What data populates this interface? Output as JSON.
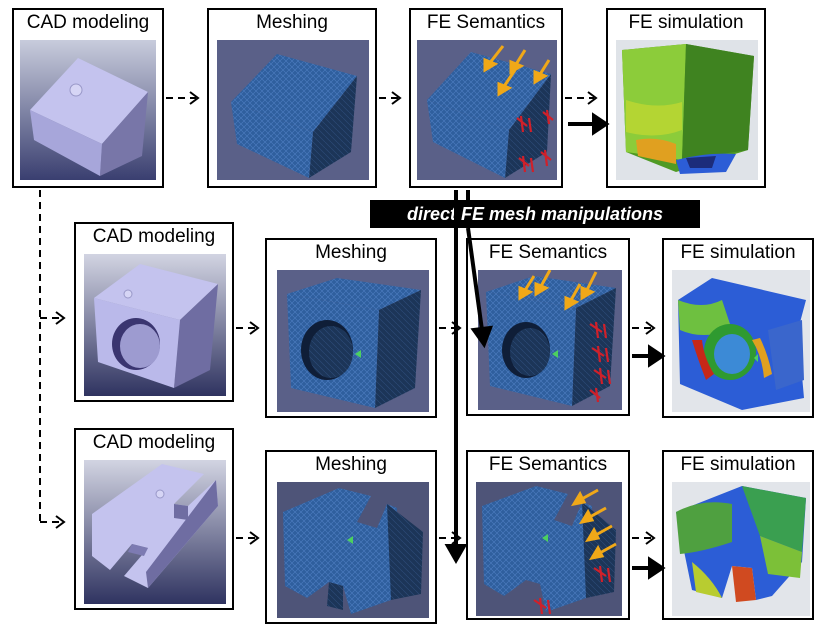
{
  "rows": [
    {
      "stages": [
        {
          "title": "CAD modeling"
        },
        {
          "title": "Meshing"
        },
        {
          "title": "FE Semantics"
        },
        {
          "title": "FE simulation"
        }
      ]
    },
    {
      "stages": [
        {
          "title": "CAD modeling"
        },
        {
          "title": "Meshing"
        },
        {
          "title": "FE Semantics"
        },
        {
          "title": "FE simulation"
        }
      ]
    },
    {
      "stages": [
        {
          "title": "CAD modeling"
        },
        {
          "title": "Meshing"
        },
        {
          "title": "FE Semantics"
        },
        {
          "title": "FE simulation"
        }
      ]
    }
  ],
  "banner": {
    "label": "direct FE mesh manipulations"
  },
  "colors": {
    "cad": "#b9b8e6",
    "mesh": "#2f5f9e",
    "mesh_dark": "#1c3558",
    "load_arrow": "#f0a818",
    "constraint": "#d0202a",
    "sim_green": "#5fae2f",
    "sim_blue": "#2c5dd6",
    "sim_red": "#c62818"
  }
}
